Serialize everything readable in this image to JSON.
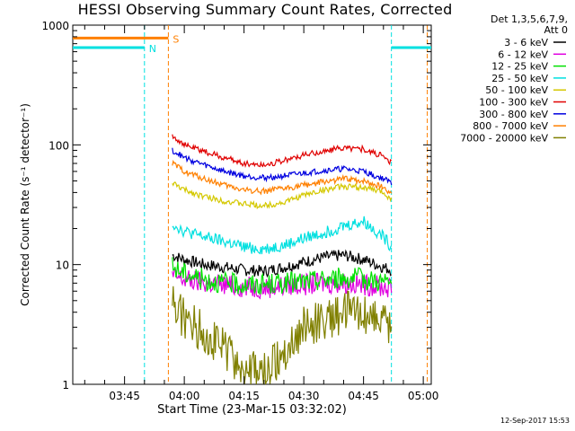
{
  "chart_data": {
    "type": "line",
    "title": "HESSI Observing Summary Count Rates, Corrected",
    "xlabel": "Start Time (23-Mar-15 03:32:02)",
    "ylabel": "Corrected Count Rate (s⁻¹ detector⁻¹)",
    "yscale": "log",
    "ylim": [
      1,
      1000
    ],
    "y_ticks": [
      1,
      10,
      100,
      1000
    ],
    "y_tick_labels": [
      "1",
      "10",
      "100",
      "1000"
    ],
    "xlim": [
      "03:32",
      "05:02"
    ],
    "x_ticks": [
      "03:45",
      "04:00",
      "04:15",
      "04:30",
      "04:45",
      "05:00"
    ],
    "grid": false,
    "legend_position": "right",
    "legend_header": [
      "Det 1,3,5,6,7,9,",
      "Att 0"
    ],
    "timestamp": "12-Sep-2017 15:53",
    "data_interval": [
      "03:57",
      "04:52"
    ],
    "series": [
      {
        "name": "3 - 6 keV",
        "color": "#000000",
        "x": [
          "03:57",
          "04:00",
          "04:05",
          "04:10",
          "04:15",
          "04:20",
          "04:25",
          "04:30",
          "04:35",
          "04:40",
          "04:45",
          "04:50",
          "04:52"
        ],
        "y": [
          12,
          11,
          10,
          9.5,
          9,
          8.8,
          9.5,
          10.5,
          11.5,
          12,
          11,
          9.5,
          9
        ]
      },
      {
        "name": "6 - 12 keV",
        "color": "#e000e0",
        "x": [
          "03:57",
          "04:00",
          "04:05",
          "04:10",
          "04:15",
          "04:20",
          "04:25",
          "04:30",
          "04:35",
          "04:40",
          "04:45",
          "04:50",
          "04:52"
        ],
        "y": [
          8,
          7.5,
          7,
          6.8,
          6.5,
          6.4,
          6.6,
          6.8,
          7,
          7,
          6.8,
          6.5,
          6.3
        ]
      },
      {
        "name": "12 - 25 keV",
        "color": "#00e000",
        "x": [
          "03:57",
          "04:00",
          "04:05",
          "04:10",
          "04:15",
          "04:20",
          "04:25",
          "04:30",
          "04:35",
          "04:40",
          "04:45",
          "04:50",
          "04:52"
        ],
        "y": [
          9.5,
          8.5,
          7.5,
          7,
          6.8,
          6.8,
          7,
          7.2,
          7.5,
          7.8,
          7.6,
          7.2,
          7
        ]
      },
      {
        "name": "25 - 50 keV",
        "color": "#00e0e0",
        "x": [
          "03:57",
          "04:00",
          "04:05",
          "04:10",
          "04:15",
          "04:20",
          "04:25",
          "04:30",
          "04:35",
          "04:40",
          "04:45",
          "04:50",
          "04:52"
        ],
        "y": [
          22,
          19,
          17,
          15.5,
          14,
          13.5,
          14.5,
          16.5,
          18.5,
          21,
          23,
          17,
          14
        ]
      },
      {
        "name": "50 - 100 keV",
        "color": "#d4c800",
        "x": [
          "03:57",
          "04:00",
          "04:05",
          "04:10",
          "04:15",
          "04:20",
          "04:25",
          "04:30",
          "04:35",
          "04:40",
          "04:45",
          "04:50",
          "04:52"
        ],
        "y": [
          48,
          42,
          37,
          34,
          32,
          31,
          33,
          38,
          42,
          45,
          44,
          40,
          35
        ]
      },
      {
        "name": "100 - 300 keV",
        "color": "#e00000",
        "x": [
          "03:57",
          "04:00",
          "04:05",
          "04:10",
          "04:15",
          "04:20",
          "04:25",
          "04:30",
          "04:35",
          "04:40",
          "04:45",
          "04:50",
          "04:52"
        ],
        "y": [
          120,
          100,
          88,
          78,
          70,
          68,
          74,
          82,
          88,
          95,
          92,
          80,
          70
        ]
      },
      {
        "name": "300 - 800 keV",
        "color": "#0000e0",
        "x": [
          "03:57",
          "04:00",
          "04:05",
          "04:10",
          "04:15",
          "04:20",
          "04:25",
          "04:30",
          "04:35",
          "04:40",
          "04:45",
          "04:50",
          "04:52"
        ],
        "y": [
          90,
          78,
          68,
          60,
          55,
          53,
          55,
          58,
          61,
          63,
          60,
          52,
          48
        ]
      },
      {
        "name": "800 - 7000 keV",
        "color": "#ff8000",
        "x": [
          "03:57",
          "04:00",
          "04:05",
          "04:10",
          "04:15",
          "04:20",
          "04:25",
          "04:30",
          "04:35",
          "04:40",
          "04:45",
          "04:50",
          "04:52"
        ],
        "y": [
          70,
          60,
          52,
          46,
          42,
          41,
          43,
          46,
          49,
          52,
          50,
          44,
          40
        ]
      },
      {
        "name": "7000 - 20000 keV",
        "color": "#808000",
        "x": [
          "03:57",
          "04:00",
          "04:05",
          "04:10",
          "04:15",
          "04:20",
          "04:25",
          "04:30",
          "04:35",
          "04:40",
          "04:45",
          "04:50",
          "04:52"
        ],
        "y": [
          5,
          3.5,
          2.8,
          2,
          1.3,
          1.2,
          1.8,
          3,
          3.5,
          4,
          4,
          3.5,
          3
        ]
      }
    ],
    "annotations": [
      {
        "label": "S",
        "kind": "SAA",
        "color": "#ff8000",
        "x_range": [
          "03:32",
          "03:56"
        ],
        "y": 780
      },
      {
        "label": "N",
        "kind": "Night",
        "color": "#00e0e0",
        "x_range": [
          "03:32",
          "03:50"
        ],
        "y": 650
      },
      {
        "label": "",
        "kind": "Night",
        "color": "#00e0e0",
        "x_range": [
          "04:52",
          "05:02"
        ],
        "y": 650
      }
    ],
    "event_lines": [
      {
        "time": "03:50",
        "color": "#00e0e0"
      },
      {
        "time": "03:56",
        "color": "#ff8000"
      },
      {
        "time": "04:52",
        "color": "#00e0e0"
      },
      {
        "time": "05:01",
        "color": "#ff8000"
      }
    ]
  }
}
